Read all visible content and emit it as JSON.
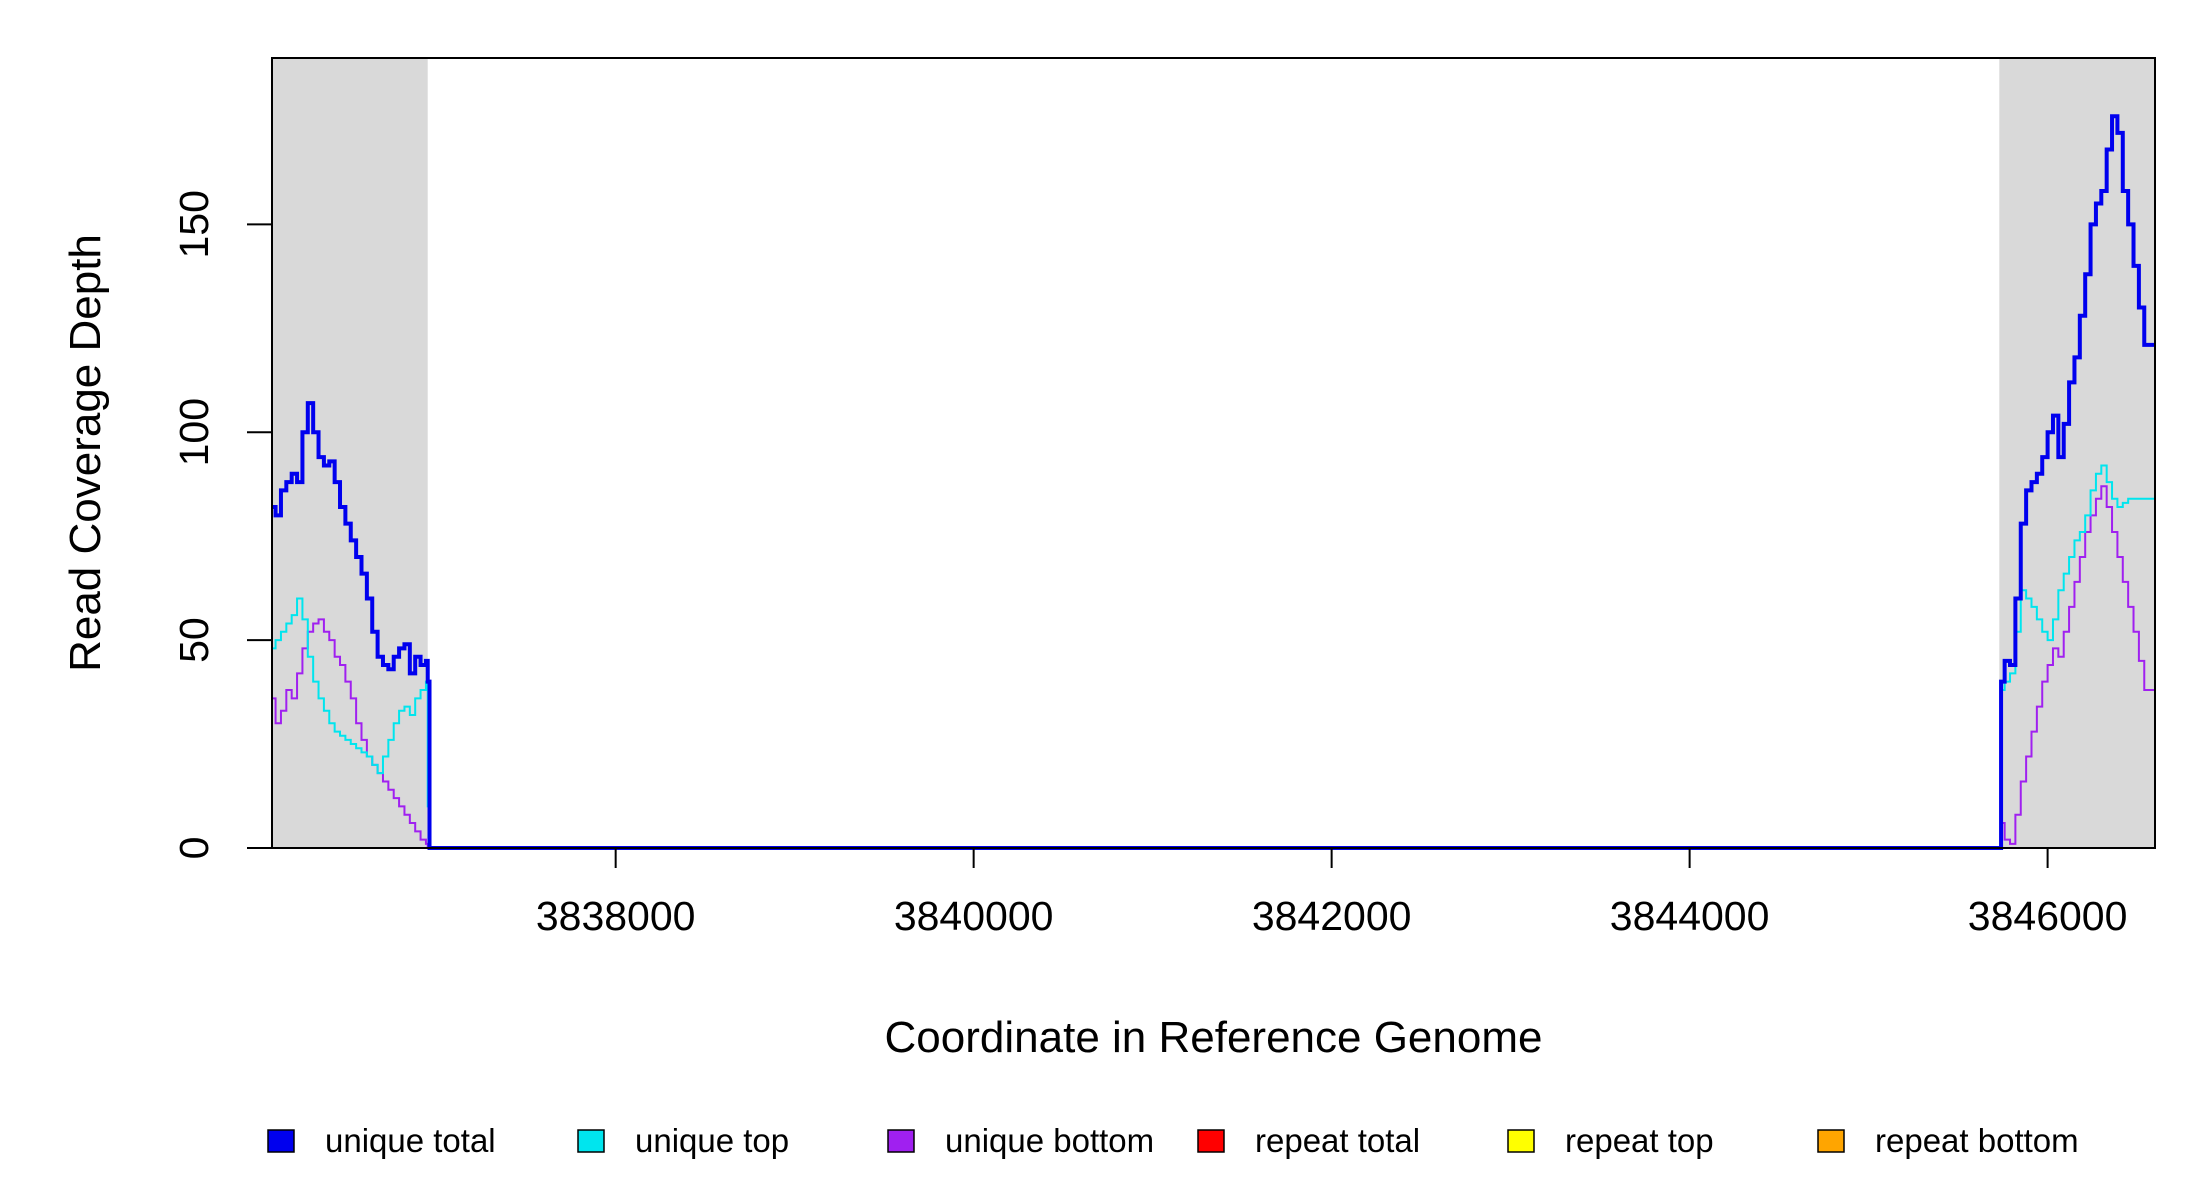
{
  "chart_data": {
    "type": "line",
    "title": "",
    "xlabel": "Coordinate in Reference Genome",
    "ylabel": "Read Coverage Depth",
    "xlim": [
      3836080,
      3846600
    ],
    "ylim": [
      0,
      180
    ],
    "x_ticks": [
      3838000,
      3840000,
      3842000,
      3844000,
      3846000
    ],
    "x_tick_labels": [
      "3838000",
      "3840000",
      "3842000",
      "3844000",
      "3846000"
    ],
    "y_ticks": [
      0,
      50,
      100,
      150
    ],
    "y_tick_labels": [
      "0",
      "50",
      "100",
      "150"
    ],
    "shaded_regions": [
      [
        3836080,
        3836950
      ],
      [
        3845730,
        3846600
      ]
    ],
    "shade_color": "#d9d9d9",
    "series": [
      {
        "name": "unique total",
        "color": "#0000ee",
        "x": [
          3836080,
          3836100,
          3836130,
          3836160,
          3836190,
          3836220,
          3836250,
          3836280,
          3836310,
          3836340,
          3836370,
          3836400,
          3836430,
          3836460,
          3836490,
          3836520,
          3836550,
          3836580,
          3836610,
          3836640,
          3836670,
          3836700,
          3836730,
          3836760,
          3836790,
          3836820,
          3836850,
          3836880,
          3836910,
          3836940,
          3836950,
          3836960,
          3836980,
          3837000,
          3845720,
          3845740,
          3845760,
          3845790,
          3845820,
          3845850,
          3845880,
          3845910,
          3845940,
          3845970,
          3846000,
          3846030,
          3846060,
          3846090,
          3846120,
          3846150,
          3846180,
          3846210,
          3846240,
          3846270,
          3846300,
          3846330,
          3846360,
          3846390,
          3846420,
          3846450,
          3846480,
          3846510,
          3846540,
          3846570,
          3846600
        ],
        "values": [
          82,
          80,
          86,
          88,
          90,
          88,
          100,
          107,
          100,
          94,
          92,
          93,
          88,
          82,
          78,
          74,
          70,
          66,
          60,
          52,
          46,
          44,
          43,
          46,
          48,
          49,
          42,
          46,
          44,
          45,
          40,
          0,
          0,
          0,
          0,
          40,
          45,
          44,
          60,
          78,
          86,
          88,
          90,
          94,
          100,
          104,
          94,
          102,
          112,
          118,
          128,
          138,
          150,
          155,
          158,
          168,
          176,
          172,
          158,
          150,
          140,
          130,
          121,
          121,
          121
        ]
      },
      {
        "name": "unique top",
        "color": "#00e5ee",
        "x": [
          3836080,
          3836100,
          3836130,
          3836160,
          3836190,
          3836220,
          3836250,
          3836280,
          3836310,
          3836340,
          3836370,
          3836400,
          3836430,
          3836460,
          3836490,
          3836520,
          3836550,
          3836580,
          3836610,
          3836640,
          3836670,
          3836700,
          3836730,
          3836760,
          3836790,
          3836820,
          3836850,
          3836880,
          3836910,
          3836940,
          3836950,
          3836960,
          3836980,
          3837000,
          3845720,
          3845740,
          3845760,
          3845790,
          3845820,
          3845850,
          3845880,
          3845910,
          3845940,
          3845970,
          3846000,
          3846030,
          3846060,
          3846090,
          3846120,
          3846150,
          3846180,
          3846210,
          3846240,
          3846270,
          3846300,
          3846330,
          3846360,
          3846390,
          3846420,
          3846450,
          3846480,
          3846510,
          3846540,
          3846570,
          3846600
        ],
        "values": [
          48,
          50,
          52,
          54,
          56,
          60,
          55,
          46,
          40,
          36,
          33,
          30,
          28,
          27,
          26,
          25,
          24,
          23,
          22,
          20,
          18,
          22,
          26,
          30,
          33,
          34,
          32,
          36,
          38,
          40,
          10,
          0,
          0,
          0,
          0,
          38,
          40,
          42,
          52,
          62,
          60,
          58,
          55,
          52,
          50,
          55,
          62,
          66,
          70,
          74,
          76,
          80,
          86,
          90,
          92,
          88,
          84,
          82,
          83,
          84,
          84,
          84,
          84,
          84,
          84
        ]
      },
      {
        "name": "unique bottom",
        "color": "#a020f0",
        "x": [
          3836080,
          3836100,
          3836130,
          3836160,
          3836190,
          3836220,
          3836250,
          3836280,
          3836310,
          3836340,
          3836370,
          3836400,
          3836430,
          3836460,
          3836490,
          3836520,
          3836550,
          3836580,
          3836610,
          3836640,
          3836670,
          3836700,
          3836730,
          3836760,
          3836790,
          3836820,
          3836850,
          3836880,
          3836910,
          3836940,
          3836950,
          3836960,
          3836980,
          3837000,
          3845720,
          3845740,
          3845760,
          3845790,
          3845820,
          3845850,
          3845880,
          3845910,
          3845940,
          3845970,
          3846000,
          3846030,
          3846060,
          3846090,
          3846120,
          3846150,
          3846180,
          3846210,
          3846240,
          3846270,
          3846300,
          3846330,
          3846360,
          3846390,
          3846420,
          3846450,
          3846480,
          3846510,
          3846540,
          3846570,
          3846600
        ],
        "values": [
          36,
          30,
          33,
          38,
          36,
          42,
          48,
          52,
          54,
          55,
          52,
          50,
          46,
          44,
          40,
          36,
          30,
          26,
          22,
          20,
          18,
          16,
          14,
          12,
          10,
          8,
          6,
          4,
          2,
          1,
          0,
          0,
          0,
          0,
          0,
          6,
          2,
          1,
          8,
          16,
          22,
          28,
          34,
          40,
          44,
          48,
          46,
          52,
          58,
          64,
          70,
          76,
          80,
          84,
          87,
          82,
          76,
          70,
          64,
          58,
          52,
          45,
          38,
          38,
          38
        ]
      },
      {
        "name": "repeat total",
        "color": "#ff0000",
        "x": [
          3836080,
          3846600
        ],
        "values": [
          0,
          0
        ]
      },
      {
        "name": "repeat top",
        "color": "#ffff00",
        "x": [
          3836080,
          3846600
        ],
        "values": [
          0,
          0
        ]
      },
      {
        "name": "repeat bottom",
        "color": "#ffa500",
        "x": [
          3836080,
          3846600
        ],
        "values": [
          0,
          0
        ]
      }
    ],
    "legend": {
      "placement": "bottom",
      "entries": [
        {
          "label": "unique total",
          "color": "#0000ee"
        },
        {
          "label": "unique top",
          "color": "#00e5ee"
        },
        {
          "label": "unique bottom",
          "color": "#a020f0"
        },
        {
          "label": "repeat total",
          "color": "#ff0000"
        },
        {
          "label": "repeat top",
          "color": "#ffff00"
        },
        {
          "label": "repeat bottom",
          "color": "#ffa500"
        }
      ]
    },
    "grid": false
  }
}
